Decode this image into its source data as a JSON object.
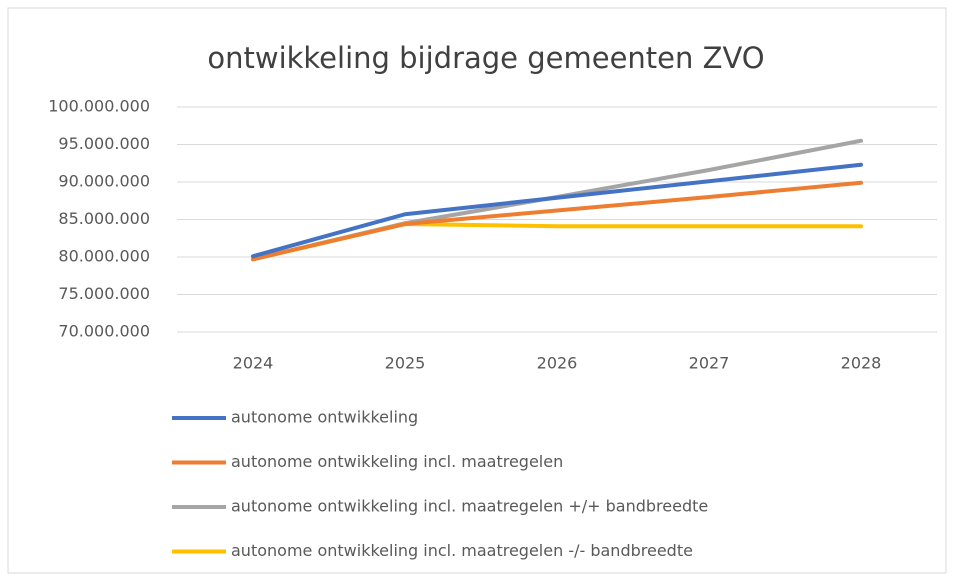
{
  "chart_data": {
    "type": "line",
    "title": "ontwikkeling bijdrage gemeenten ZVO",
    "categories": [
      "2024",
      "2025",
      "2026",
      "2027",
      "2028"
    ],
    "series": [
      {
        "name": "autonome ontwikkeling",
        "color": "#4472c4",
        "values": [
          80100000,
          85700000,
          87900000,
          90100000,
          92300000
        ]
      },
      {
        "name": "autonome ontwikkeling incl. maatregelen",
        "color": "#ed7d31",
        "values": [
          79700000,
          84400000,
          86200000,
          88000000,
          89900000
        ]
      },
      {
        "name": "autonome ontwikkeling incl. maatregelen +/+ bandbreedte",
        "color": "#a5a5a5",
        "values": [
          79700000,
          84500000,
          88000000,
          91600000,
          95500000
        ]
      },
      {
        "name": "autonome ontwikkeling incl. maatregelen -/- bandbreedte",
        "color": "#ffc000",
        "values": [
          79700000,
          84400000,
          84100000,
          84100000,
          84100000
        ]
      }
    ],
    "ylim": [
      70000000,
      100000000
    ],
    "yticks": [
      {
        "value": 70000000,
        "label": "70.000.000"
      },
      {
        "value": 75000000,
        "label": "75.000.000"
      },
      {
        "value": 80000000,
        "label": "80.000.000"
      },
      {
        "value": 85000000,
        "label": "85.000.000"
      },
      {
        "value": 90000000,
        "label": "90.000.000"
      },
      {
        "value": 95000000,
        "label": "95.000.000"
      },
      {
        "value": 100000000,
        "label": "100.000.000"
      }
    ],
    "grid": true,
    "legend": "bottom"
  }
}
